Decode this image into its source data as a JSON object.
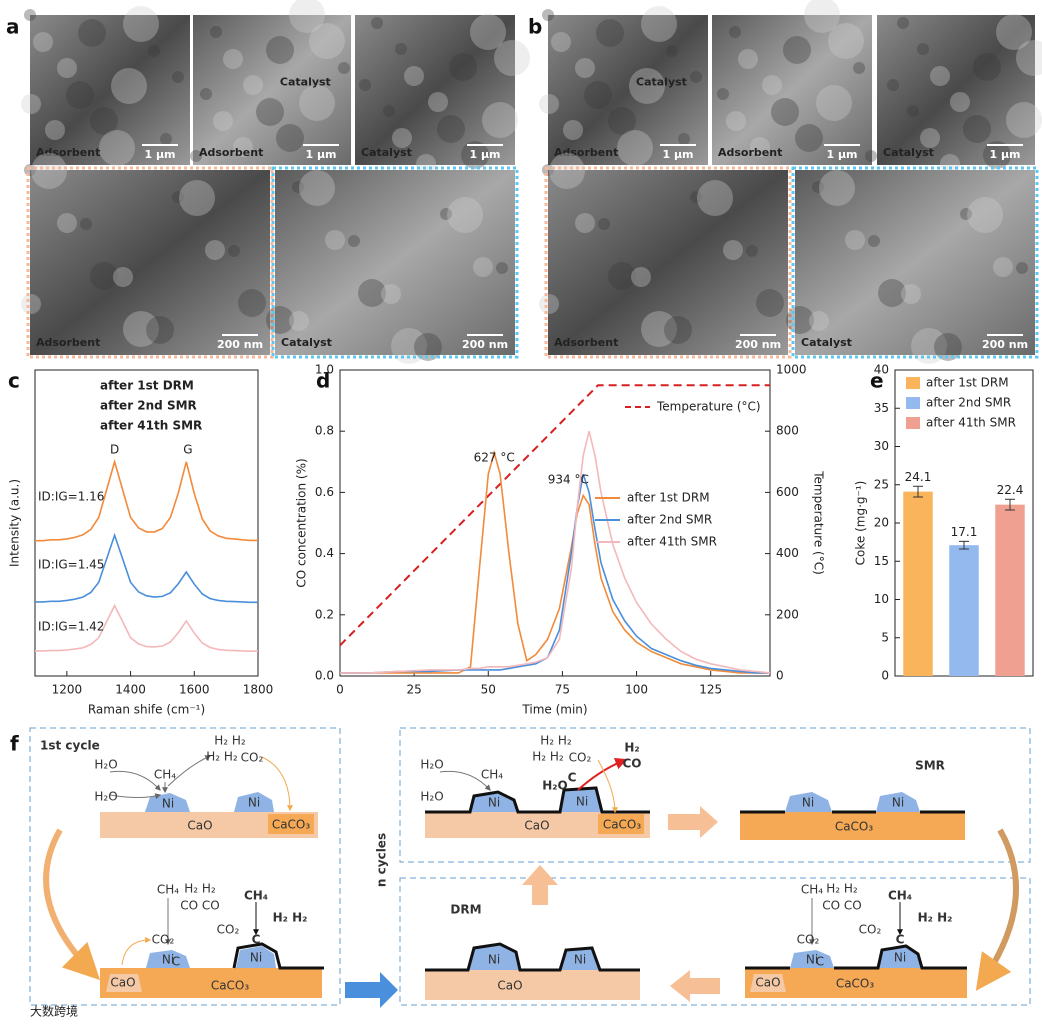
{
  "sem": {
    "a": {
      "label": "a",
      "top": [
        {
          "tags": [
            "Adsorbent"
          ],
          "scale": "1 μm"
        },
        {
          "tags": [
            "Adsorbent",
            "Catalyst"
          ],
          "scale": "1 μm"
        },
        {
          "tags": [
            "Catalyst"
          ],
          "scale": "1 μm"
        }
      ],
      "bottom": [
        {
          "tags": [
            "Adsorbent"
          ],
          "scale": "200 nm"
        },
        {
          "tags": [
            "Catalyst"
          ],
          "scale": "200 nm"
        }
      ]
    },
    "b": {
      "label": "b",
      "top": [
        {
          "tags": [
            "Adsorbent",
            "Catalyst"
          ],
          "scale": "1 μm"
        },
        {
          "tags": [
            "Adsorbent"
          ],
          "scale": "1 μm"
        },
        {
          "tags": [
            "Catalyst"
          ],
          "scale": "1 μm"
        }
      ],
      "bottom": [
        {
          "tags": [
            "Adsorbent"
          ],
          "scale": "200 nm"
        },
        {
          "tags": [
            "Catalyst"
          ],
          "scale": "200 nm"
        }
      ]
    }
  },
  "chart_data": [
    {
      "type": "line",
      "label": "c",
      "xlabel": "Raman shife (cm⁻¹)",
      "ylabel": "Intensity (a.u.)",
      "xlim": [
        1100,
        1800
      ],
      "xticks": [
        1200,
        1400,
        1600,
        1800
      ],
      "ylim": [
        0,
        10
      ],
      "x": [
        1100,
        1125,
        1150,
        1175,
        1200,
        1225,
        1250,
        1275,
        1300,
        1325,
        1350,
        1375,
        1400,
        1425,
        1450,
        1475,
        1500,
        1525,
        1550,
        1575,
        1600,
        1625,
        1650,
        1675,
        1700,
        1725,
        1750,
        1775,
        1800
      ],
      "series": [
        {
          "name": "after 1st DRM",
          "color": "#f28a3c",
          "values": [
            4.42,
            4.42,
            4.45,
            4.45,
            4.48,
            4.53,
            4.61,
            4.79,
            5.18,
            6.09,
            7.0,
            6.09,
            5.18,
            4.84,
            4.71,
            4.71,
            4.82,
            5.18,
            5.99,
            7.0,
            5.96,
            5.13,
            4.74,
            4.58,
            4.5,
            4.48,
            4.45,
            4.43,
            4.43
          ]
        },
        {
          "name": "after 2nd SMR",
          "color": "#4a8fdc",
          "values": [
            2.42,
            2.42,
            2.44,
            2.44,
            2.47,
            2.51,
            2.58,
            2.73,
            3.06,
            3.83,
            4.6,
            3.83,
            3.06,
            2.75,
            2.62,
            2.58,
            2.6,
            2.72,
            3.02,
            3.4,
            3.0,
            2.68,
            2.53,
            2.47,
            2.44,
            2.43,
            2.42,
            2.41,
            2.41
          ]
        },
        {
          "name": "after 41th SMR",
          "color": "#f4b8bb",
          "values": [
            0.82,
            0.82,
            0.83,
            0.83,
            0.85,
            0.88,
            0.92,
            1.03,
            1.25,
            1.78,
            2.3,
            1.78,
            1.25,
            1.05,
            0.96,
            0.95,
            0.98,
            1.11,
            1.42,
            1.8,
            1.4,
            1.08,
            0.93,
            0.87,
            0.84,
            0.83,
            0.82,
            0.81,
            0.81
          ]
        }
      ],
      "peak_labels": [
        "D",
        "G"
      ],
      "ratio_labels": [
        "ID:IG=1.16",
        "ID:IG=1.45",
        "ID:IG=1.42"
      ]
    },
    {
      "type": "line",
      "label": "d",
      "xlabel": "Time (min)",
      "ylabel": "CO concentration (%)",
      "y2label": "Temperature (°C)",
      "xlim": [
        0,
        145
      ],
      "xticks": [
        0,
        25,
        50,
        75,
        100,
        125
      ],
      "ylim": [
        0,
        1.0
      ],
      "yticks": [
        {
          "value": 0,
          "label": "0.0"
        },
        0.2,
        0.4,
        0.6,
        0.8,
        {
          "value": 1.0,
          "label": "1.0"
        }
      ],
      "y2lim": [
        0,
        1000
      ],
      "y2ticks": [
        0,
        200,
        400,
        600,
        800,
        1000
      ],
      "series": [
        {
          "name": "Temperature (°C)",
          "color": "#d62020",
          "linestyle": "dashed",
          "axis": "y2",
          "x": [
            0,
            87,
            145
          ],
          "values": [
            100,
            950,
            950
          ]
        },
        {
          "name": "after 1st DRM",
          "color": "#f28a3c",
          "x": [
            0,
            10,
            20,
            30,
            40,
            44,
            47,
            50,
            52,
            54,
            57,
            60,
            63,
            66,
            70,
            74,
            78,
            80,
            82,
            84,
            86,
            88,
            92,
            96,
            100,
            105,
            110,
            115,
            120,
            125,
            130,
            135,
            140,
            145
          ],
          "values": [
            0.01,
            0.01,
            0.01,
            0.01,
            0.01,
            0.03,
            0.35,
            0.66,
            0.73,
            0.66,
            0.4,
            0.17,
            0.05,
            0.07,
            0.12,
            0.22,
            0.42,
            0.53,
            0.59,
            0.56,
            0.43,
            0.32,
            0.21,
            0.15,
            0.11,
            0.08,
            0.06,
            0.04,
            0.03,
            0.02,
            0.015,
            0.01,
            0.01,
            0.01
          ]
        },
        {
          "name": "after 2nd SMR",
          "color": "#4a8fdc",
          "x": [
            0,
            10,
            20,
            30,
            40,
            44,
            47,
            50,
            52,
            54,
            57,
            60,
            63,
            66,
            70,
            74,
            78,
            80,
            82,
            84,
            86,
            88,
            92,
            96,
            100,
            105,
            110,
            115,
            120,
            125,
            130,
            135,
            140,
            145
          ],
          "values": [
            0.01,
            0.01,
            0.015,
            0.015,
            0.02,
            0.02,
            0.02,
            0.02,
            0.02,
            0.02,
            0.025,
            0.03,
            0.035,
            0.04,
            0.06,
            0.15,
            0.4,
            0.55,
            0.66,
            0.6,
            0.48,
            0.37,
            0.25,
            0.18,
            0.13,
            0.09,
            0.07,
            0.05,
            0.035,
            0.025,
            0.02,
            0.015,
            0.01,
            0.01
          ]
        },
        {
          "name": "after 41th SMR",
          "color": "#f4b8bb",
          "x": [
            0,
            10,
            20,
            30,
            40,
            44,
            47,
            50,
            52,
            54,
            57,
            60,
            63,
            66,
            70,
            74,
            78,
            80,
            82,
            84,
            86,
            88,
            92,
            96,
            100,
            105,
            110,
            115,
            120,
            125,
            130,
            135,
            140,
            145
          ],
          "values": [
            0.01,
            0.01,
            0.015,
            0.02,
            0.02,
            0.025,
            0.025,
            0.03,
            0.03,
            0.03,
            0.03,
            0.035,
            0.04,
            0.045,
            0.06,
            0.12,
            0.35,
            0.55,
            0.72,
            0.8,
            0.72,
            0.6,
            0.43,
            0.32,
            0.24,
            0.17,
            0.12,
            0.08,
            0.055,
            0.04,
            0.03,
            0.02,
            0.015,
            0.01
          ]
        }
      ],
      "annotations": [
        "627 °C",
        "934 °C"
      ]
    },
    {
      "type": "bar",
      "label": "e",
      "ylabel": "Coke (mg·g⁻¹)",
      "ylim": [
        0,
        40
      ],
      "yticks": [
        0,
        5,
        10,
        15,
        20,
        25,
        30,
        35,
        40
      ],
      "series": [
        {
          "name": "after 1st DRM",
          "color": "#f9b45c",
          "values": [
            24.1
          ],
          "errors": [
            0.7
          ]
        },
        {
          "name": "after 2nd SMR",
          "color": "#93b9ef",
          "values": [
            17.1
          ],
          "errors": [
            0.5
          ]
        },
        {
          "name": "after 41th SMR",
          "color": "#f0a090",
          "values": [
            22.4
          ],
          "errors": [
            0.7
          ]
        }
      ]
    }
  ],
  "diagram": {
    "label": "f",
    "first_cycle": "1st cycle",
    "n_cycles": "n cycles",
    "smr": "SMR",
    "drm": "DRM",
    "cao": "CaO",
    "caco3": "CaCO₃",
    "ni": "Ni",
    "ch4": "CH₄",
    "h2o": "H₂O",
    "h2h2": "H₂ H₂",
    "co2": "CO₂",
    "coco": "CO CO",
    "c": "C",
    "h2": "H₂",
    "co": "CO"
  },
  "watermark": "大数跨境"
}
